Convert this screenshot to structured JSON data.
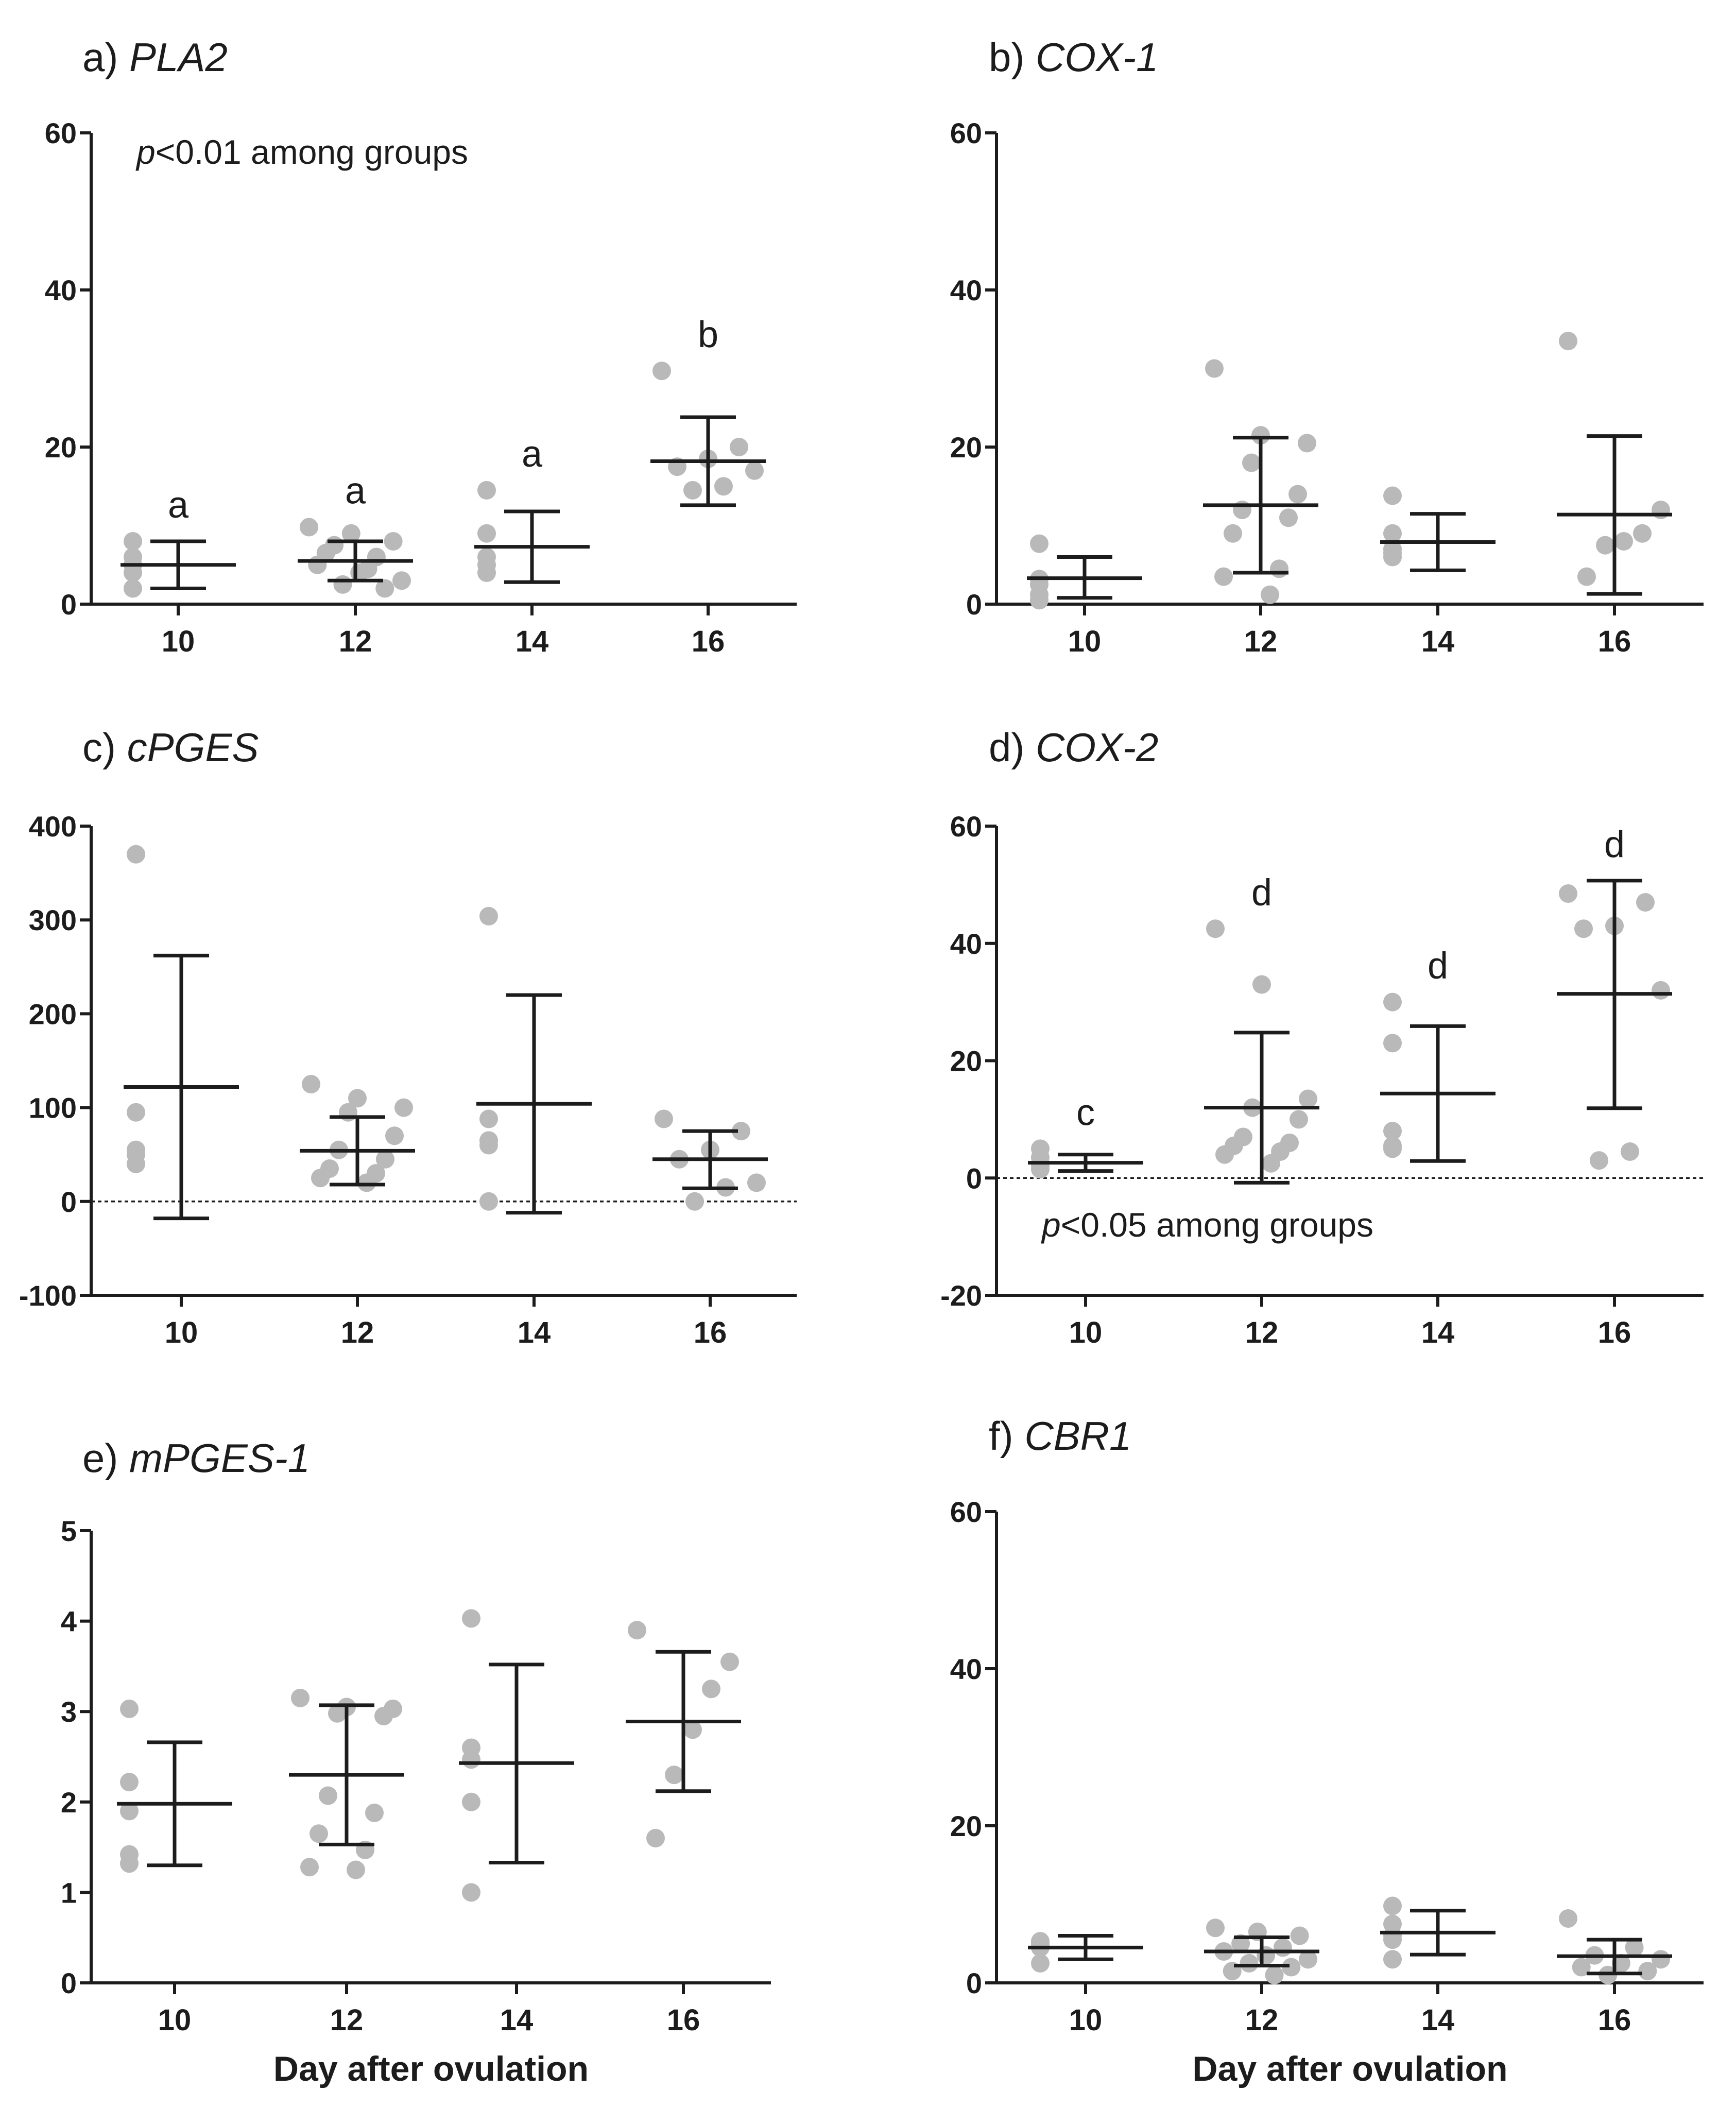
{
  "x_axis_label": "Day after ovulation",
  "colors": {
    "points": "#b9b9b9",
    "bars": "#1c1c1c",
    "axes": "#1c1c1c",
    "text": "#1c1c1c"
  },
  "chart_data": [
    {
      "type": "scatter",
      "panel": "a)",
      "title": "PLA2",
      "categories": [
        "10",
        "12",
        "14",
        "16"
      ],
      "ylim": [
        0,
        60
      ],
      "yticks": [
        0,
        20,
        40,
        60
      ],
      "ytick_labels": [
        "0",
        "20",
        "40",
        "60"
      ],
      "zero_line": false,
      "annotation": {
        "italic": "p",
        "rest": "<0.01 among groups",
        "loc": "top-left"
      },
      "groups": [
        {
          "x": "10",
          "points": [
            8.0,
            6.0,
            4.0,
            2.0,
            5.0
          ],
          "mean": 5.0,
          "upper": 8.0,
          "lower": 2.0,
          "letter": "a"
        },
        {
          "x": "12",
          "points": [
            9.8,
            9.0,
            8.0,
            7.5,
            6.0,
            5.0,
            4.0,
            3.0,
            2.5,
            2.0,
            6.5,
            4.5
          ],
          "mean": 5.5,
          "upper": 8.0,
          "lower": 3.0,
          "letter": "a"
        },
        {
          "x": "14",
          "points": [
            14.5,
            9.0,
            6.0,
            5.0,
            4.0
          ],
          "mean": 7.3,
          "upper": 11.8,
          "lower": 2.8,
          "letter": "a"
        },
        {
          "x": "16",
          "points": [
            29.7,
            20.0,
            18.5,
            17.5,
            17.0,
            15.0,
            14.5
          ],
          "mean": 18.2,
          "upper": 23.8,
          "lower": 12.6,
          "letter": "b"
        }
      ]
    },
    {
      "type": "scatter",
      "panel": "b)",
      "title": "COX-1",
      "categories": [
        "10",
        "12",
        "14",
        "16"
      ],
      "ylim": [
        0,
        60
      ],
      "yticks": [
        0,
        20,
        40,
        60
      ],
      "ytick_labels": [
        "0",
        "20",
        "40",
        "60"
      ],
      "zero_line": false,
      "groups": [
        {
          "x": "10",
          "points": [
            7.7,
            3.2,
            2.5,
            1.2,
            0.5
          ],
          "mean": 3.3,
          "upper": 6.0,
          "lower": 0.8
        },
        {
          "x": "12",
          "points": [
            30.0,
            21.5,
            20.5,
            18.0,
            14.0,
            12.0,
            11.0,
            9.0,
            4.5,
            3.5,
            1.2
          ],
          "mean": 12.6,
          "upper": 21.2,
          "lower": 4.0
        },
        {
          "x": "14",
          "points": [
            13.8,
            9.0,
            7.0,
            6.5,
            6.0
          ],
          "mean": 7.9,
          "upper": 11.5,
          "lower": 4.3
        },
        {
          "x": "16",
          "points": [
            33.5,
            12.0,
            9.0,
            8.0,
            7.5,
            3.5
          ],
          "mean": 11.4,
          "upper": 21.4,
          "lower": 1.3
        }
      ]
    },
    {
      "type": "scatter",
      "panel": "c)",
      "title": "cPGES",
      "categories": [
        "10",
        "12",
        "14",
        "16"
      ],
      "ylim": [
        -100,
        400
      ],
      "yticks": [
        -100,
        0,
        100,
        200,
        300,
        400
      ],
      "ytick_labels": [
        "-100",
        "0",
        "100",
        "200",
        "300",
        "400"
      ],
      "zero_line": true,
      "groups": [
        {
          "x": "10",
          "points": [
            370,
            95,
            55,
            50,
            40
          ],
          "mean": 122,
          "upper": 262,
          "lower": -18
        },
        {
          "x": "12",
          "points": [
            125,
            110,
            100,
            95,
            70,
            55,
            45,
            35,
            30,
            25,
            20
          ],
          "mean": 54,
          "upper": 90,
          "lower": 18
        },
        {
          "x": "14",
          "points": [
            304,
            88,
            65,
            60,
            0
          ],
          "mean": 104,
          "upper": 220,
          "lower": -12
        },
        {
          "x": "16",
          "points": [
            88,
            75,
            55,
            45,
            20,
            15,
            0
          ],
          "mean": 45,
          "upper": 75,
          "lower": 14
        }
      ]
    },
    {
      "type": "scatter",
      "panel": "d)",
      "title": "COX-2",
      "categories": [
        "10",
        "12",
        "14",
        "16"
      ],
      "ylim": [
        -20,
        60
      ],
      "yticks": [
        -20,
        0,
        20,
        40,
        60
      ],
      "ytick_labels": [
        "-20",
        "0",
        "20",
        "40",
        "60"
      ],
      "zero_line": true,
      "annotation": {
        "italic": "p",
        "rest": "<0.05 among groups",
        "loc": "bottom-left"
      },
      "groups": [
        {
          "x": "10",
          "points": [
            5.0,
            3.5,
            2.5,
            2.0,
            1.5
          ],
          "mean": 2.6,
          "upper": 4.0,
          "lower": 1.2,
          "letter": "c"
        },
        {
          "x": "12",
          "points": [
            42.5,
            33.0,
            13.5,
            12.0,
            10.0,
            7.0,
            6.0,
            5.5,
            4.5,
            4.0,
            2.5
          ],
          "mean": 12.0,
          "upper": 24.8,
          "lower": -0.8,
          "letter": "d"
        },
        {
          "x": "14",
          "points": [
            30.0,
            23.0,
            8.0,
            5.5,
            5.0
          ],
          "mean": 14.4,
          "upper": 25.9,
          "lower": 2.9,
          "letter": "d"
        },
        {
          "x": "16",
          "points": [
            48.5,
            47.0,
            43.0,
            42.5,
            32.0,
            4.5,
            3.0
          ],
          "mean": 31.4,
          "upper": 50.7,
          "lower": 11.9,
          "letter": "d"
        }
      ]
    },
    {
      "type": "scatter",
      "panel": "e)",
      "title": "mPGES-1",
      "categories": [
        "10",
        "12",
        "14",
        "16"
      ],
      "ylim": [
        0,
        5
      ],
      "yticks": [
        0,
        1,
        2,
        3,
        4,
        5
      ],
      "ytick_labels": [
        "0",
        "1",
        "2",
        "3",
        "4",
        "5"
      ],
      "zero_line": false,
      "xlabel": "Day after ovulation",
      "groups": [
        {
          "x": "10",
          "points": [
            3.03,
            2.22,
            1.9,
            1.42,
            1.32
          ],
          "mean": 1.98,
          "upper": 2.66,
          "lower": 1.3
        },
        {
          "x": "12",
          "points": [
            3.15,
            3.05,
            3.03,
            2.98,
            2.95,
            2.07,
            1.88,
            1.65,
            1.47,
            1.28,
            1.25
          ],
          "mean": 2.3,
          "upper": 3.07,
          "lower": 1.53
        },
        {
          "x": "14",
          "points": [
            4.03,
            2.6,
            2.47,
            2.0,
            1.0
          ],
          "mean": 2.43,
          "upper": 3.52,
          "lower": 1.33
        },
        {
          "x": "16",
          "points": [
            3.9,
            3.55,
            3.25,
            2.8,
            2.3,
            1.6
          ],
          "mean": 2.89,
          "upper": 3.66,
          "lower": 2.12
        }
      ]
    },
    {
      "type": "scatter",
      "panel": "f)",
      "title": "CBR1",
      "categories": [
        "10",
        "12",
        "14",
        "16"
      ],
      "ylim": [
        0,
        60
      ],
      "yticks": [
        0,
        20,
        40,
        60
      ],
      "ytick_labels": [
        "0",
        "20",
        "40",
        "60"
      ],
      "zero_line": false,
      "xlabel": "Day after ovulation",
      "groups": [
        {
          "x": "10",
          "points": [
            5.3,
            5.0,
            4.8,
            4.5,
            2.5
          ],
          "mean": 4.5,
          "upper": 6.0,
          "lower": 3.0
        },
        {
          "x": "12",
          "points": [
            7.0,
            6.5,
            6.0,
            5.0,
            4.5,
            4.0,
            3.5,
            3.0,
            2.5,
            2.0,
            1.5,
            1.0
          ],
          "mean": 4.0,
          "upper": 5.8,
          "lower": 2.2
        },
        {
          "x": "14",
          "points": [
            9.8,
            7.5,
            6.0,
            5.5,
            3.0
          ],
          "mean": 6.4,
          "upper": 9.2,
          "lower": 3.6
        },
        {
          "x": "16",
          "points": [
            8.2,
            4.5,
            3.5,
            3.0,
            2.5,
            2.0,
            1.5,
            1.0
          ],
          "mean": 3.4,
          "upper": 5.5,
          "lower": 1.2
        }
      ]
    }
  ]
}
